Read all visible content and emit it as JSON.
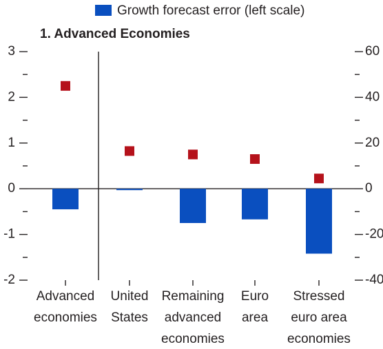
{
  "chart_data": {
    "type": "bar",
    "title": "1. Advanced Economies",
    "categories": [
      "Advanced\neconomies",
      "United\nStates",
      "Remaining\nadvanced\neconomies",
      "Euro\narea",
      "Stressed\neuro area\neconomies"
    ],
    "series": [
      {
        "name": "Growth forecast error (left scale)",
        "color": "#0a4fbf",
        "type": "bar",
        "values": [
          -0.45,
          -0.03,
          -0.75,
          -0.67,
          -1.42
        ]
      },
      {
        "color": "#b5121b",
        "type": "scatter",
        "axis": "y2",
        "values": [
          45,
          16.5,
          15,
          13,
          4.5
        ]
      }
    ],
    "ylim": [
      -2,
      3
    ],
    "yticks": [
      -2,
      -1,
      0,
      1,
      2,
      3
    ],
    "yminorticks": [
      -1.5,
      -0.5,
      0.5,
      1.5,
      2.5
    ],
    "y2lim": [
      -40,
      60
    ],
    "y2ticks": [
      -40,
      -20,
      0,
      20,
      40,
      60
    ],
    "y2minorticks": [
      -30,
      -10,
      10,
      30,
      50
    ]
  }
}
